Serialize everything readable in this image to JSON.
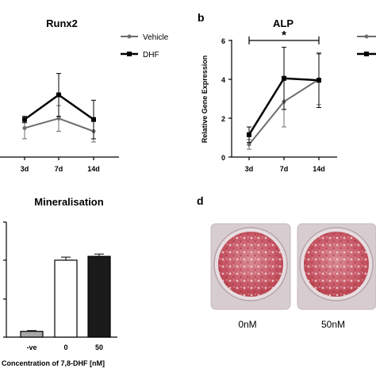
{
  "colors": {
    "vehicle": "#6e6e6e",
    "dhf": "#000000",
    "neg_bar": "#a6a6a6",
    "zero_bar": "#ffffff",
    "fifty_bar": "#1a1a1a"
  },
  "chart_data": [
    {
      "type": "line",
      "title": "Runx2",
      "panel_label": "",
      "x": [
        "3d",
        "7d",
        "14d"
      ],
      "series": [
        {
          "name": "Vehicle",
          "values": [
            -0.35,
            0.1,
            -0.5
          ],
          "err": [
            0.5,
            0.6,
            0.5
          ]
        },
        {
          "name": "DHF",
          "values": [
            0.05,
            1.2,
            0.05
          ],
          "err": [
            0.15,
            1.0,
            0.9
          ]
        }
      ],
      "legend": "top-right",
      "ylim": [
        -2,
        4.6
      ]
    },
    {
      "type": "line",
      "title": "ALP",
      "panel_label": "b",
      "ylabel": "Relative Gene Expression",
      "x": [
        "3d",
        "7d",
        "14d"
      ],
      "yticks": [
        "0",
        "2",
        "4",
        "6"
      ],
      "ylim": [
        0,
        6
      ],
      "series": [
        {
          "name": "",
          "values": [
            0.65,
            2.85,
            4.0
          ],
          "err": [
            0.25,
            1.3,
            1.3
          ]
        },
        {
          "name": "",
          "values": [
            1.15,
            4.05,
            3.95
          ],
          "err": [
            0.4,
            1.6,
            1.4
          ]
        }
      ],
      "annotation": "*"
    },
    {
      "type": "bar",
      "title": "Mineralisation",
      "xlabel": "Concentration of 7,8-DHF [nM]",
      "categories": [
        "-ve",
        "0",
        "50"
      ],
      "values": [
        0.15,
        2.0,
        2.1
      ],
      "err": [
        0.02,
        0.08,
        0.06
      ],
      "ylim": [
        0,
        3
      ]
    }
  ],
  "panel_d": {
    "label": "d",
    "wells": [
      "0nM",
      "50nM"
    ]
  }
}
